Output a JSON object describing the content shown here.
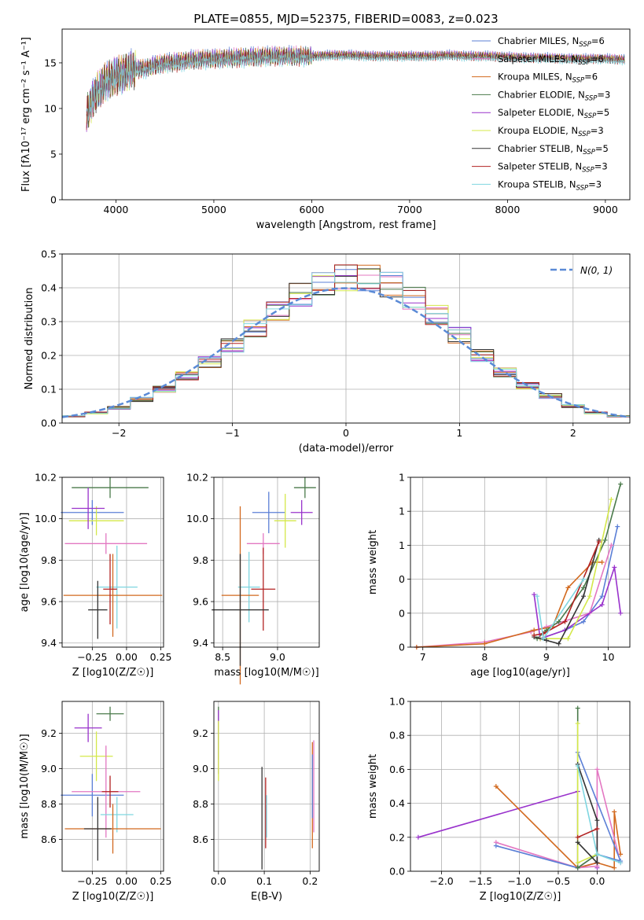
{
  "figure": {
    "title": "PLATE=0855, MJD=52375, FIBERID=0083, z=0.023"
  },
  "chart_data": [
    {
      "id": "spectrum",
      "type": "line",
      "xlabel": "wavelength [Angstrom, rest frame]",
      "ylabel": "Flux [fλ10⁻¹⁷ erg cm⁻² s⁻¹ A⁻¹]",
      "xlim": [
        3450,
        9250
      ],
      "ylim": [
        0,
        18.7
      ],
      "xticks": [
        4000,
        5000,
        6000,
        7000,
        8000,
        9000
      ],
      "yticks": [
        0,
        5,
        10,
        15
      ],
      "x": [
        3700,
        3800,
        3900,
        4000,
        4100,
        4200,
        4300,
        4400,
        4500,
        4600,
        4800,
        5000,
        5200,
        5400,
        5600,
        5800,
        6000,
        6200,
        6400,
        6600,
        6800,
        7000,
        7200,
        7400,
        7600,
        7800,
        8000,
        8200,
        8400,
        8600,
        8800,
        9000,
        9200
      ],
      "y": [
        9.5,
        12.0,
        13.2,
        13.8,
        14.2,
        14.6,
        14.6,
        15.0,
        15.2,
        15.3,
        15.6,
        15.7,
        15.8,
        15.9,
        16.0,
        16.0,
        16.0,
        16.1,
        16.1,
        16.0,
        16.0,
        16.0,
        16.0,
        16.1,
        16.0,
        16.0,
        15.9,
        15.8,
        15.8,
        15.7,
        15.7,
        15.7,
        15.6
      ],
      "legend_position": "upper right",
      "legend": [
        {
          "label": "Chabrier MILES, N",
          "sub": "SSP",
          "suffix": "=6",
          "color": "#5b7fd6"
        },
        {
          "label": "Salpeter MILES, N",
          "sub": "SSP",
          "suffix": "=6",
          "color": "#e377c2"
        },
        {
          "label": "Kroupa MILES, N",
          "sub": "SSP",
          "suffix": "=6",
          "color": "#d2691e"
        },
        {
          "label": "Chabrier ELODIE, N",
          "sub": "SSP",
          "suffix": "=3",
          "color": "#4a7a4a"
        },
        {
          "label": "Salpeter ELODIE, N",
          "sub": "SSP",
          "suffix": "=5",
          "color": "#9932cc"
        },
        {
          "label": "Kroupa ELODIE, N",
          "sub": "SSP",
          "suffix": "=3",
          "color": "#d4e84a"
        },
        {
          "label": "Chabrier STELIB, N",
          "sub": "SSP",
          "suffix": "=5",
          "color": "#333333"
        },
        {
          "label": "Salpeter STELIB, N",
          "sub": "SSP",
          "suffix": "=3",
          "color": "#b22222"
        },
        {
          "label": "Kroupa STELIB, N",
          "sub": "SSP",
          "suffix": "=3",
          "color": "#7fd6e0"
        }
      ]
    },
    {
      "id": "residual_hist",
      "type": "line",
      "xlabel": "(data-model)/error",
      "ylabel": "Normed distribution",
      "xlim": [
        -2.5,
        2.5
      ],
      "ylim": [
        0,
        0.5
      ],
      "xticks": [
        -2,
        -1,
        0,
        1,
        2
      ],
      "yticks": [
        0.0,
        0.1,
        0.2,
        0.3,
        0.4,
        0.5
      ],
      "bin_edges": [
        -2.5,
        -2.3,
        -2.1,
        -1.9,
        -1.7,
        -1.5,
        -1.3,
        -1.1,
        -0.9,
        -0.7,
        -0.5,
        -0.3,
        -0.1,
        0.1,
        0.3,
        0.5,
        0.7,
        0.9,
        1.1,
        1.3,
        1.5,
        1.7,
        1.9,
        2.1,
        2.3,
        2.5
      ],
      "bin_values": [
        0.02,
        0.03,
        0.045,
        0.07,
        0.1,
        0.14,
        0.18,
        0.23,
        0.28,
        0.33,
        0.38,
        0.41,
        0.43,
        0.43,
        0.41,
        0.37,
        0.32,
        0.26,
        0.2,
        0.15,
        0.11,
        0.08,
        0.05,
        0.03,
        0.02
      ],
      "normal_curve_label": "N(0, 1)",
      "grid": true,
      "legend_position": "upper right"
    },
    {
      "id": "age_vs_Z",
      "type": "scatter",
      "xlabel": "Z [log10(Z/Z☉)]",
      "ylabel": "age  [log10(age/yr)]",
      "xlim": [
        -0.47,
        0.27
      ],
      "ylim": [
        9.38,
        10.2
      ],
      "xticks": [
        -0.25,
        0.0,
        0.25
      ],
      "yticks": [
        9.4,
        9.6,
        9.8,
        10.0,
        10.2
      ],
      "points": [
        {
          "x": -0.25,
          "y": 10.03,
          "xerr": 0.23,
          "yerr": 0.06,
          "color": "#5b7fd6"
        },
        {
          "x": -0.12,
          "y": 10.15,
          "xerr": 0.28,
          "yerr": 0.05,
          "color": "#4a7a4a"
        },
        {
          "x": -0.22,
          "y": 9.99,
          "xerr": 0.2,
          "yerr": 0.07,
          "color": "#d4e84a"
        },
        {
          "x": -0.28,
          "y": 10.05,
          "xerr": 0.12,
          "yerr": 0.1,
          "color": "#9932cc"
        },
        {
          "x": -0.15,
          "y": 9.88,
          "xerr": 0.3,
          "yerr": 0.05,
          "color": "#e377c2"
        },
        {
          "x": -0.07,
          "y": 9.67,
          "xerr": 0.15,
          "yerr": 0.2,
          "color": "#7fd6e0"
        },
        {
          "x": -0.1,
          "y": 9.63,
          "xerr": 0.36,
          "yerr": 0.2,
          "color": "#d2691e"
        },
        {
          "x": -0.12,
          "y": 9.66,
          "xerr": 0.05,
          "yerr": 0.17,
          "color": "#b22222"
        },
        {
          "x": -0.21,
          "y": 9.56,
          "xerr": 0.07,
          "yerr": 0.14,
          "color": "#333333"
        }
      ],
      "grid": true
    },
    {
      "id": "age_vs_mass",
      "type": "scatter",
      "xlabel": "mass [log10(M/M☉)]",
      "ylabel": "",
      "xlim": [
        8.42,
        9.38
      ],
      "ylim": [
        9.38,
        10.2
      ],
      "xticks": [
        8.5,
        9.0
      ],
      "yticks": [
        9.4,
        9.6,
        9.8,
        10.0,
        10.2
      ],
      "points": [
        {
          "x": 8.92,
          "y": 10.03,
          "xerr": 0.15,
          "yerr": 0.1,
          "color": "#5b7fd6"
        },
        {
          "x": 9.25,
          "y": 10.15,
          "xerr": 0.1,
          "yerr": 0.05,
          "color": "#4a7a4a"
        },
        {
          "x": 9.07,
          "y": 9.99,
          "xerr": 0.1,
          "yerr": 0.13,
          "color": "#d4e84a"
        },
        {
          "x": 9.22,
          "y": 10.03,
          "xerr": 0.1,
          "yerr": 0.06,
          "color": "#9932cc"
        },
        {
          "x": 8.87,
          "y": 9.88,
          "xerr": 0.15,
          "yerr": 0.05,
          "color": "#e377c2"
        },
        {
          "x": 8.74,
          "y": 9.67,
          "xerr": 0.1,
          "yerr": 0.17,
          "color": "#7fd6e0"
        },
        {
          "x": 8.66,
          "y": 9.63,
          "xerr": 0.17,
          "yerr": 0.43,
          "color": "#d2691e"
        },
        {
          "x": 8.87,
          "y": 9.66,
          "xerr": 0.11,
          "yerr": 0.2,
          "color": "#b22222"
        },
        {
          "x": 8.66,
          "y": 9.56,
          "xerr": 0.26,
          "yerr": 0.27,
          "color": "#333333"
        }
      ],
      "grid": true
    },
    {
      "id": "weight_vs_age",
      "type": "line",
      "xlabel": "age  [log10(age/yr)]",
      "ylabel": "mass weight",
      "xlim": [
        6.8,
        10.35
      ],
      "ylim": [
        0,
        1.0
      ],
      "xticks": [
        7,
        8,
        9,
        10
      ],
      "yticks": [
        0.0,
        0.2,
        0.4,
        0.6,
        0.8,
        1.0
      ],
      "series": [
        {
          "color": "#5b7fd6",
          "x": [
            8.9,
            9.3,
            9.6,
            9.9,
            10.15
          ],
          "y": [
            0.05,
            0.1,
            0.15,
            0.3,
            0.71
          ]
        },
        {
          "color": "#e377c2",
          "x": [
            6.9,
            8.0,
            8.75,
            9.0,
            9.7,
            10.05
          ],
          "y": [
            0.0,
            0.03,
            0.09,
            0.12,
            0.2,
            0.6
          ]
        },
        {
          "color": "#d2691e",
          "x": [
            6.9,
            8.0,
            8.8,
            9.1,
            9.35,
            9.75,
            9.9
          ],
          "y": [
            0.0,
            0.02,
            0.1,
            0.12,
            0.35,
            0.5,
            0.5
          ]
        },
        {
          "color": "#4a7a4a",
          "x": [
            8.85,
            9.0,
            9.2,
            9.6,
            9.95,
            10.2
          ],
          "y": [
            0.05,
            0.1,
            0.15,
            0.35,
            0.63,
            0.96
          ]
        },
        {
          "color": "#9932cc",
          "x": [
            8.8,
            8.9,
            9.3,
            9.9,
            10.1,
            10.2
          ],
          "y": [
            0.31,
            0.05,
            0.1,
            0.25,
            0.47,
            0.2
          ]
        },
        {
          "color": "#d4e84a",
          "x": [
            8.9,
            9.35,
            9.7,
            10.05
          ],
          "y": [
            0.05,
            0.05,
            0.3,
            0.87
          ]
        },
        {
          "color": "#333333",
          "x": [
            8.8,
            9.0,
            9.2,
            9.6,
            9.85
          ],
          "y": [
            0.06,
            0.04,
            0.02,
            0.3,
            0.63
          ]
        },
        {
          "color": "#b22222",
          "x": [
            8.8,
            8.95,
            9.3,
            9.85
          ],
          "y": [
            0.07,
            0.08,
            0.15,
            0.62
          ]
        },
        {
          "color": "#7fd6e0",
          "x": [
            8.85,
            8.95,
            9.6
          ],
          "y": [
            0.3,
            0.05,
            0.4
          ]
        }
      ],
      "grid": true
    },
    {
      "id": "mass_vs_Z",
      "type": "scatter",
      "xlabel": "Z [log10(Z/Z☉)]",
      "ylabel": "mass [log10(M/M☉)]",
      "xlim": [
        -0.47,
        0.27
      ],
      "ylim": [
        8.42,
        9.38
      ],
      "xticks": [
        -0.25,
        0.0,
        0.25
      ],
      "yticks": [
        8.6,
        8.8,
        9.0,
        9.2
      ],
      "points": [
        {
          "x": -0.25,
          "y": 8.85,
          "xerr": 0.23,
          "yerr": 0.12,
          "color": "#5b7fd6"
        },
        {
          "x": -0.12,
          "y": 9.31,
          "xerr": 0.1,
          "yerr": 0.04,
          "color": "#4a7a4a"
        },
        {
          "x": -0.22,
          "y": 9.07,
          "xerr": 0.12,
          "yerr": 0.14,
          "color": "#d4e84a"
        },
        {
          "x": -0.28,
          "y": 9.23,
          "xerr": 0.1,
          "yerr": 0.08,
          "color": "#9932cc"
        },
        {
          "x": -0.15,
          "y": 8.87,
          "xerr": 0.25,
          "yerr": 0.26,
          "color": "#e377c2"
        },
        {
          "x": -0.07,
          "y": 8.74,
          "xerr": 0.12,
          "yerr": 0.1,
          "color": "#7fd6e0"
        },
        {
          "x": -0.1,
          "y": 8.66,
          "xerr": 0.35,
          "yerr": 0.14,
          "color": "#d2691e"
        },
        {
          "x": -0.12,
          "y": 8.87,
          "xerr": 0.06,
          "yerr": 0.09,
          "color": "#b22222"
        },
        {
          "x": -0.21,
          "y": 8.66,
          "xerr": 0.1,
          "yerr": 0.18,
          "color": "#333333"
        }
      ],
      "grid": true
    },
    {
      "id": "mass_vs_ebv",
      "type": "scatter",
      "xlabel": "E(B-V)",
      "ylabel": "",
      "xlim": [
        -0.01,
        0.22
      ],
      "ylim": [
        8.42,
        9.38
      ],
      "xticks": [
        0.0,
        0.1,
        0.2
      ],
      "yticks": [
        8.6,
        8.8,
        9.0,
        9.2
      ],
      "points": [
        {
          "x": 0.0,
          "y": 9.2,
          "yerr": 0.15,
          "color": "#4a7a4a"
        },
        {
          "x": 0.0,
          "y": 9.15,
          "yerr": 0.18,
          "color": "#9932cc"
        },
        {
          "x": 0.0,
          "y": 9.1,
          "yerr": 0.17,
          "color": "#d4e84a"
        },
        {
          "x": 0.095,
          "y": 8.72,
          "yerr": 0.29,
          "color": "#333333"
        },
        {
          "x": 0.103,
          "y": 8.75,
          "yerr": 0.2,
          "color": "#b22222"
        },
        {
          "x": 0.105,
          "y": 8.73,
          "yerr": 0.12,
          "color": "#7fd6e0"
        },
        {
          "x": 0.205,
          "y": 8.85,
          "yerr": 0.3,
          "color": "#d2691e"
        },
        {
          "x": 0.208,
          "y": 8.9,
          "yerr": 0.26,
          "color": "#e377c2"
        },
        {
          "x": 0.205,
          "y": 8.9,
          "yerr": 0.18,
          "color": "#5b7fd6"
        }
      ],
      "grid": true
    },
    {
      "id": "weight_vs_Z",
      "type": "line",
      "xlabel": "Z [log10(Z/Z☉)]",
      "ylabel": "mass weight",
      "xlim": [
        -2.4,
        0.42
      ],
      "ylim": [
        0,
        1.0
      ],
      "xticks": [
        -2.0,
        -1.5,
        -1.0,
        -0.5,
        0.0
      ],
      "yticks": [
        0.0,
        0.2,
        0.4,
        0.6,
        0.8,
        1.0
      ],
      "series": [
        {
          "color": "#9932cc",
          "x": [
            -2.3,
            -0.25,
            -0.25,
            0.0,
            0.0
          ],
          "y": [
            0.2,
            0.47,
            0.02,
            0.05,
            0.02
          ]
        },
        {
          "color": "#d2691e",
          "x": [
            -1.3,
            -0.25,
            0.0,
            0.22,
            0.22,
            0.3
          ],
          "y": [
            0.5,
            0.02,
            0.05,
            0.02,
            0.35,
            0.1
          ]
        },
        {
          "color": "#e377c2",
          "x": [
            -1.3,
            -0.25,
            0.0,
            0.0,
            0.3
          ],
          "y": [
            0.17,
            0.02,
            0.03,
            0.6,
            0.05
          ]
        },
        {
          "color": "#5b7fd6",
          "x": [
            -1.3,
            -0.25,
            0.0,
            0.3,
            -0.25
          ],
          "y": [
            0.15,
            0.02,
            0.1,
            0.06,
            0.7
          ]
        },
        {
          "color": "#4a7a4a",
          "x": [
            -0.25,
            -0.25,
            0.0
          ],
          "y": [
            0.96,
            0.02,
            0.1
          ]
        },
        {
          "color": "#d4e84a",
          "x": [
            -0.25,
            -0.25,
            0.0
          ],
          "y": [
            0.87,
            0.05,
            0.1
          ]
        },
        {
          "color": "#333333",
          "x": [
            -0.25,
            0.0,
            0.0,
            -0.25
          ],
          "y": [
            0.63,
            0.3,
            0.05,
            0.17
          ]
        },
        {
          "color": "#7fd6e0",
          "x": [
            -0.25,
            0.0,
            0.3
          ],
          "y": [
            0.62,
            0.1,
            0.05
          ]
        },
        {
          "color": "#b22222",
          "x": [
            -0.25,
            0.0
          ],
          "y": [
            0.2,
            0.25
          ]
        }
      ],
      "grid": true
    }
  ]
}
